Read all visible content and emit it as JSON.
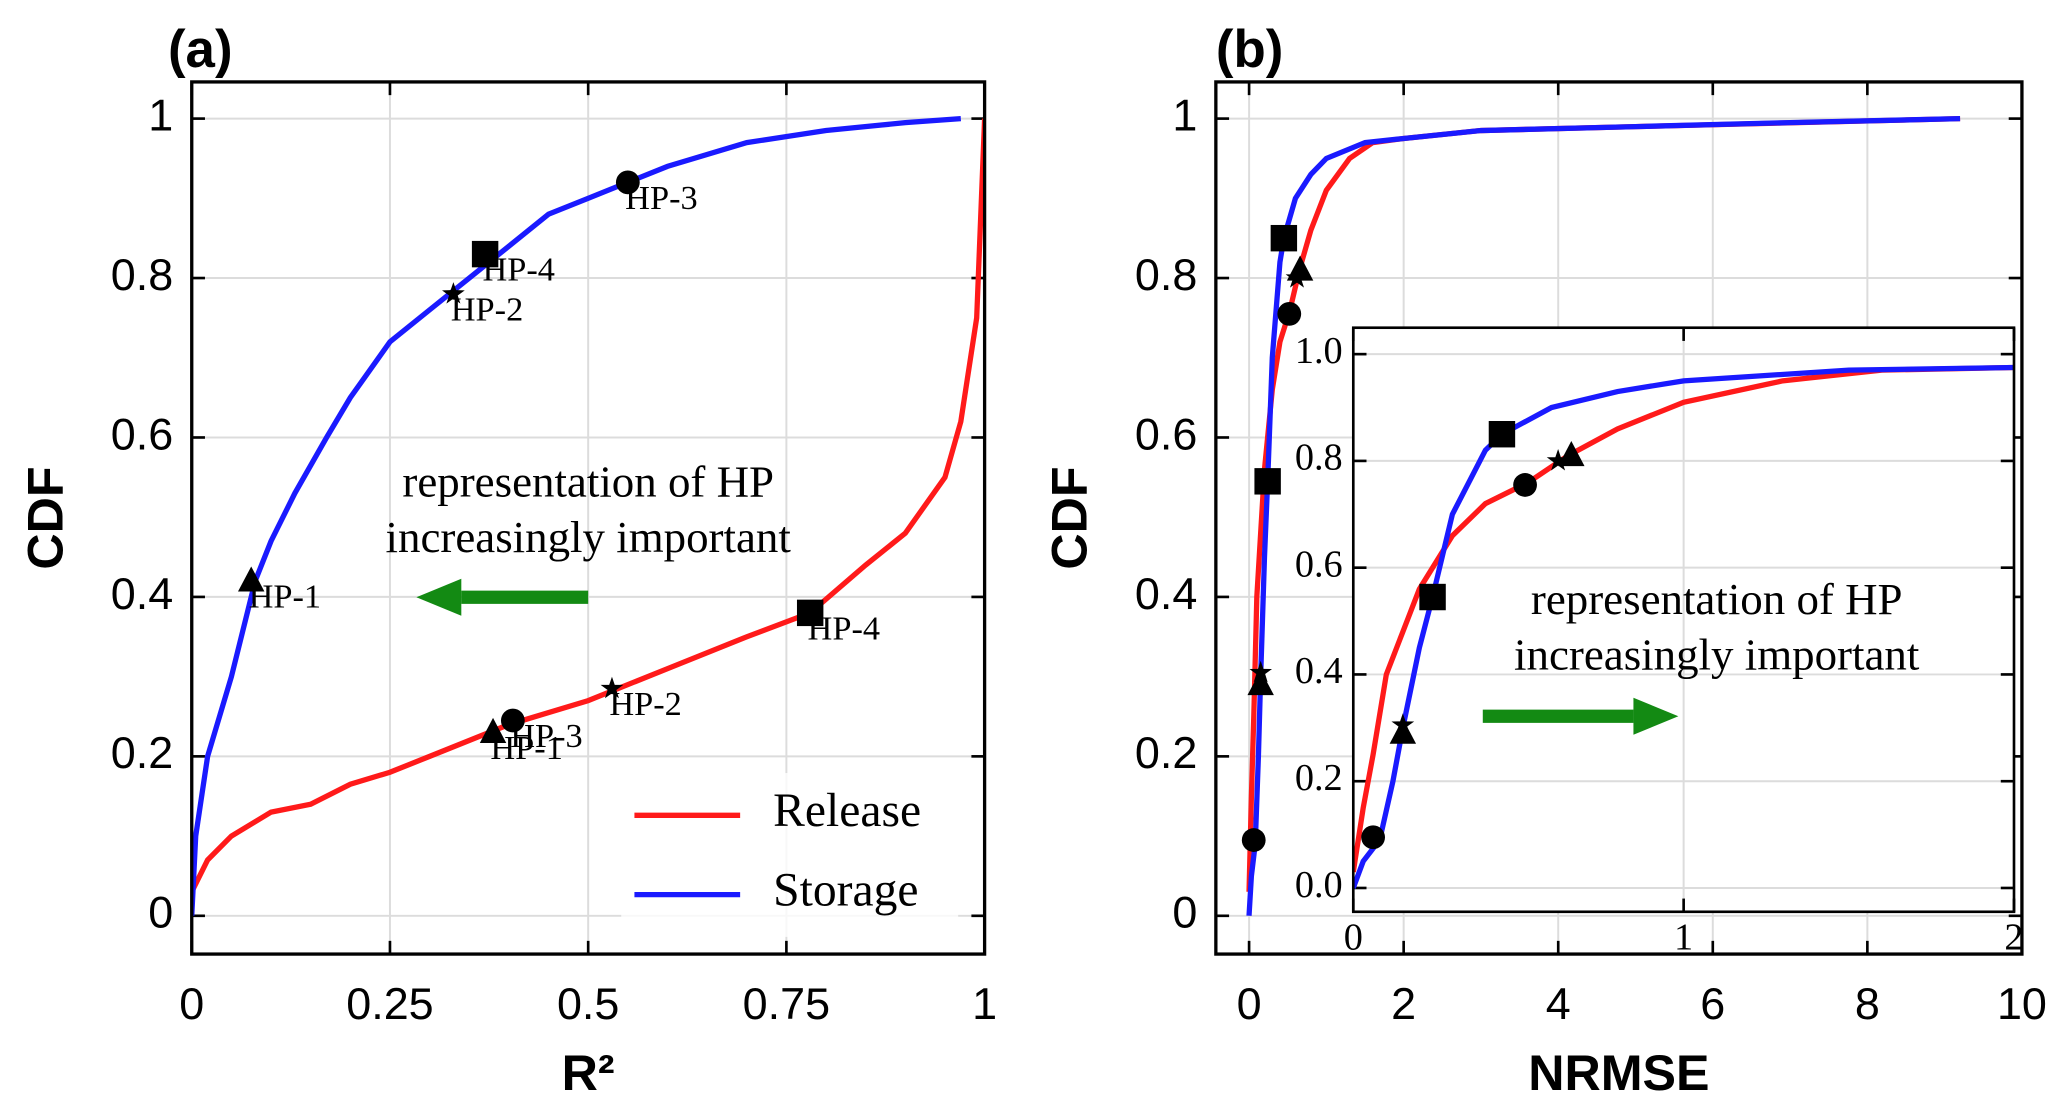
{
  "chart_data": [
    {
      "type": "line",
      "panel": "(a)",
      "xlabel": "R²",
      "ylabel": "CDF",
      "xlim": [
        0,
        1
      ],
      "ylim": [
        -0.048,
        1.046
      ],
      "xticks": [
        0,
        0.25,
        0.5,
        0.75,
        1
      ],
      "yticks": [
        0,
        0.2,
        0.4,
        0.6,
        0.8,
        1
      ],
      "grid": true,
      "legend": "lower right",
      "annotation": {
        "lines": [
          "representation of HP",
          "increasingly important"
        ],
        "arrow": "left",
        "color": "#138a13"
      },
      "series": [
        {
          "name": "Release",
          "color": "#ff1a1a",
          "x": [
            0,
            0.02,
            0.05,
            0.1,
            0.15,
            0.2,
            0.25,
            0.3,
            0.4,
            0.5,
            0.6,
            0.7,
            0.78,
            0.85,
            0.9,
            0.95,
            0.97,
            0.99,
            1.0
          ],
          "y": [
            0.03,
            0.07,
            0.1,
            0.13,
            0.14,
            0.165,
            0.18,
            0.2,
            0.24,
            0.27,
            0.31,
            0.35,
            0.38,
            0.44,
            0.48,
            0.55,
            0.62,
            0.75,
            1.0
          ],
          "markers": [
            {
              "label": "HP-1",
              "marker": "triangle",
              "x": 0.38,
              "y": 0.23
            },
            {
              "label": "HP-3",
              "marker": "circle",
              "x": 0.405,
              "y": 0.245
            },
            {
              "label": "HP-2",
              "marker": "star",
              "x": 0.53,
              "y": 0.285
            },
            {
              "label": "HP-4",
              "marker": "square",
              "x": 0.78,
              "y": 0.38
            }
          ]
        },
        {
          "name": "Storage",
          "color": "#1a1aff",
          "x": [
            0,
            0.005,
            0.02,
            0.05,
            0.08,
            0.1,
            0.13,
            0.17,
            0.2,
            0.25,
            0.3,
            0.35,
            0.4,
            0.45,
            0.5,
            0.55,
            0.6,
            0.7,
            0.8,
            0.9,
            0.97
          ],
          "y": [
            0,
            0.1,
            0.2,
            0.3,
            0.42,
            0.47,
            0.53,
            0.6,
            0.65,
            0.72,
            0.76,
            0.8,
            0.84,
            0.88,
            0.9,
            0.92,
            0.94,
            0.97,
            0.985,
            0.995,
            1.0
          ],
          "markers": [
            {
              "label": "HP-1",
              "marker": "triangle",
              "x": 0.075,
              "y": 0.42
            },
            {
              "label": "HP-2",
              "marker": "star",
              "x": 0.33,
              "y": 0.78
            },
            {
              "label": "HP-4",
              "marker": "square",
              "x": 0.37,
              "y": 0.83
            },
            {
              "label": "HP-3",
              "marker": "circle",
              "x": 0.55,
              "y": 0.92
            }
          ]
        }
      ]
    },
    {
      "type": "line",
      "panel": "(b)",
      "xlabel": "NRMSE",
      "ylabel": "CDF",
      "xlim": [
        -0.43,
        10
      ],
      "ylim": [
        -0.048,
        1.046
      ],
      "xticks": [
        0,
        2,
        4,
        6,
        8,
        10
      ],
      "yticks": [
        0,
        0.2,
        0.4,
        0.6,
        0.8,
        1
      ],
      "grid": true,
      "annotation": {
        "lines": [
          "representation of HP",
          "increasingly important"
        ],
        "arrow": "right",
        "color": "#138a13"
      },
      "inset": {
        "xlim": [
          0,
          2
        ],
        "ylim": [
          -0.0446,
          1.0495
        ],
        "xticks": [
          0,
          1,
          2
        ],
        "yticks": [
          {
            "value": 0,
            "label": "0.0"
          },
          0.2,
          0.4,
          0.6,
          0.8,
          {
            "value": 1,
            "label": "1.0"
          }
        ],
        "grid": true
      },
      "series": [
        {
          "name": "Release",
          "color": "#ff1a1a",
          "x": [
            0,
            0.03,
            0.06,
            0.1,
            0.15,
            0.2,
            0.3,
            0.4,
            0.53,
            0.65,
            0.8,
            1,
            1.3,
            1.6,
            2,
            3,
            5,
            9.2
          ],
          "y": [
            0.03,
            0.15,
            0.25,
            0.4,
            0.48,
            0.56,
            0.66,
            0.72,
            0.76,
            0.81,
            0.86,
            0.91,
            0.95,
            0.97,
            0.975,
            0.985,
            0.99,
            1.0
          ],
          "markers": [
            {
              "marker": "circle",
              "x": 0.52,
              "y": 0.755
            },
            {
              "marker": "star",
              "x": 0.62,
              "y": 0.8
            },
            {
              "marker": "triangle",
              "x": 0.66,
              "y": 0.81
            },
            {
              "marker": "square",
              "x": 0.45,
              "y": 0.85
            }
          ]
        },
        {
          "name": "Storage",
          "color": "#1a1aff",
          "x": [
            0,
            0.03,
            0.08,
            0.12,
            0.15,
            0.2,
            0.24,
            0.3,
            0.4,
            0.45,
            0.6,
            0.8,
            1,
            1.5,
            2,
            3,
            5,
            7,
            9.2
          ],
          "y": [
            0,
            0.05,
            0.09,
            0.2,
            0.3,
            0.45,
            0.545,
            0.7,
            0.82,
            0.85,
            0.9,
            0.93,
            0.95,
            0.97,
            0.975,
            0.985,
            0.99,
            0.995,
            1.0
          ],
          "markers": [
            {
              "marker": "circle",
              "x": 0.06,
              "y": 0.095
            },
            {
              "marker": "triangle",
              "x": 0.15,
              "y": 0.29
            },
            {
              "marker": "star",
              "x": 0.15,
              "y": 0.305
            },
            {
              "marker": "square",
              "x": 0.24,
              "y": 0.545
            }
          ]
        }
      ]
    }
  ]
}
